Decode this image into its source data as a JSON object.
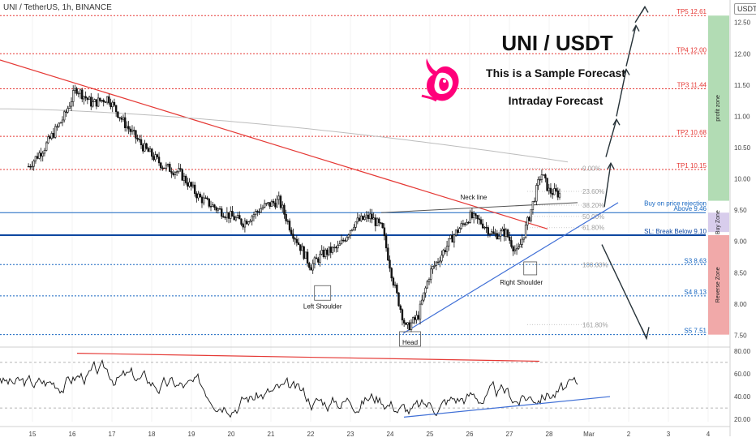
{
  "header": {
    "symbol_label": "UNI / TetherUS, 1h, BINANCE",
    "currency": "USDT"
  },
  "overlay": {
    "title": "UNI / USDT",
    "subtitle1": "This is a Sample Forecast",
    "subtitle2": "Intraday Forecast"
  },
  "colors": {
    "up": "#26a69a",
    "down": "#ef5350",
    "candle": "#111111",
    "trend_red": "#e53935",
    "blue": "#1565c0",
    "profit_zone": "#a5d6a7",
    "buy_zone": "#d1c4e9",
    "reverse_zone": "#ef9a9a",
    "ma": "#bdbdbd"
  },
  "chart_data": {
    "type": "candlestick",
    "x_ticks": [
      "15",
      "16",
      "17",
      "18",
      "19",
      "20",
      "21",
      "22",
      "23",
      "24",
      "25",
      "26",
      "27",
      "28",
      "Mar",
      "2",
      "3",
      "4"
    ],
    "y_ticks": [
      "12.50",
      "12.00",
      "11.50",
      "11.00",
      "10.50",
      "10.00",
      "9.50",
      "9.00",
      "8.50",
      "8.00",
      "7.50"
    ],
    "ylim": [
      7.35,
      12.6
    ],
    "price_path": [
      [
        14.9,
        10.2
      ],
      [
        15.3,
        10.5
      ],
      [
        15.8,
        11.0
      ],
      [
        16.1,
        11.45
      ],
      [
        16.5,
        11.2
      ],
      [
        16.9,
        11.3
      ],
      [
        17.3,
        10.9
      ],
      [
        17.8,
        10.5
      ],
      [
        18.3,
        10.2
      ],
      [
        18.7,
        10.1
      ],
      [
        19.2,
        9.7
      ],
      [
        19.7,
        9.5
      ],
      [
        20.3,
        9.3
      ],
      [
        20.8,
        9.55
      ],
      [
        21.2,
        9.65
      ],
      [
        21.5,
        9.2
      ],
      [
        22.0,
        8.6
      ],
      [
        22.3,
        8.8
      ],
      [
        22.7,
        8.9
      ],
      [
        23.1,
        9.3
      ],
      [
        23.5,
        9.4
      ],
      [
        23.8,
        9.2
      ],
      [
        24.1,
        8.3
      ],
      [
        24.4,
        7.6
      ],
      [
        24.7,
        7.8
      ],
      [
        25.0,
        8.5
      ],
      [
        25.3,
        8.8
      ],
      [
        25.6,
        9.1
      ],
      [
        26.0,
        9.4
      ],
      [
        26.3,
        9.3
      ],
      [
        26.6,
        9.1
      ],
      [
        26.9,
        9.15
      ],
      [
        27.2,
        8.8
      ],
      [
        27.5,
        9.4
      ],
      [
        27.8,
        10.1
      ],
      [
        28.0,
        9.8
      ],
      [
        28.3,
        9.75
      ]
    ],
    "levels": [
      {
        "label": "TP5 12.61",
        "value": 12.61,
        "style": "dotted-red"
      },
      {
        "label": "TP4 12.00",
        "value": 12.0,
        "style": "dotted-red"
      },
      {
        "label": "TP3 11.44",
        "value": 11.44,
        "style": "dotted-red"
      },
      {
        "label": "TP2 10.68",
        "value": 10.68,
        "style": "dotted-red"
      },
      {
        "label": "TP1 10.15",
        "value": 10.15,
        "style": "dotted-red"
      },
      {
        "label": "Buy on price rejection",
        "value": 9.55,
        "style": "blue-label"
      },
      {
        "label": "Above 9.46",
        "value": 9.46,
        "style": "solid-blue"
      },
      {
        "label": "SL: Break Below 9.10",
        "value": 9.1,
        "style": "thick-blue"
      },
      {
        "label": "S3 8.63",
        "value": 8.63,
        "style": "dotted-blue"
      },
      {
        "label": "S4 8.13",
        "value": 8.13,
        "style": "dotted-blue"
      },
      {
        "label": "S5 7.51",
        "value": 7.51,
        "style": "dotted-blue"
      }
    ],
    "fib_labels": [
      {
        "label": "0.00%",
        "value": 10.17
      },
      {
        "label": "23.60%",
        "value": 9.8
      },
      {
        "label": "38.20%",
        "value": 9.58
      },
      {
        "label": "50.00%",
        "value": 9.4
      },
      {
        "label": "61.80%",
        "value": 9.22
      },
      {
        "label": "100.00%",
        "value": 8.63
      },
      {
        "label": "161.80%",
        "value": 7.67
      }
    ],
    "annotations": [
      {
        "label": "Neck line",
        "x": 26.1,
        "y": 9.67
      },
      {
        "label": "Left Shoulder",
        "x": 22.3,
        "y": 7.93
      },
      {
        "label": "Head",
        "x": 24.5,
        "y": 7.35
      },
      {
        "label": "Right Shoulder",
        "x": 27.3,
        "y": 8.31
      }
    ],
    "zones": [
      {
        "label": "profit zone",
        "from": 9.65,
        "to": 12.61
      },
      {
        "label": "Buy Zone",
        "from": 9.15,
        "to": 9.46
      },
      {
        "label": "Reverse Zone",
        "from": 7.51,
        "to": 9.1
      }
    ],
    "rsi": {
      "y_ticks": [
        "80.00",
        "60.00",
        "40.00",
        "20.00"
      ],
      "ylim": [
        18,
        82
      ]
    }
  }
}
